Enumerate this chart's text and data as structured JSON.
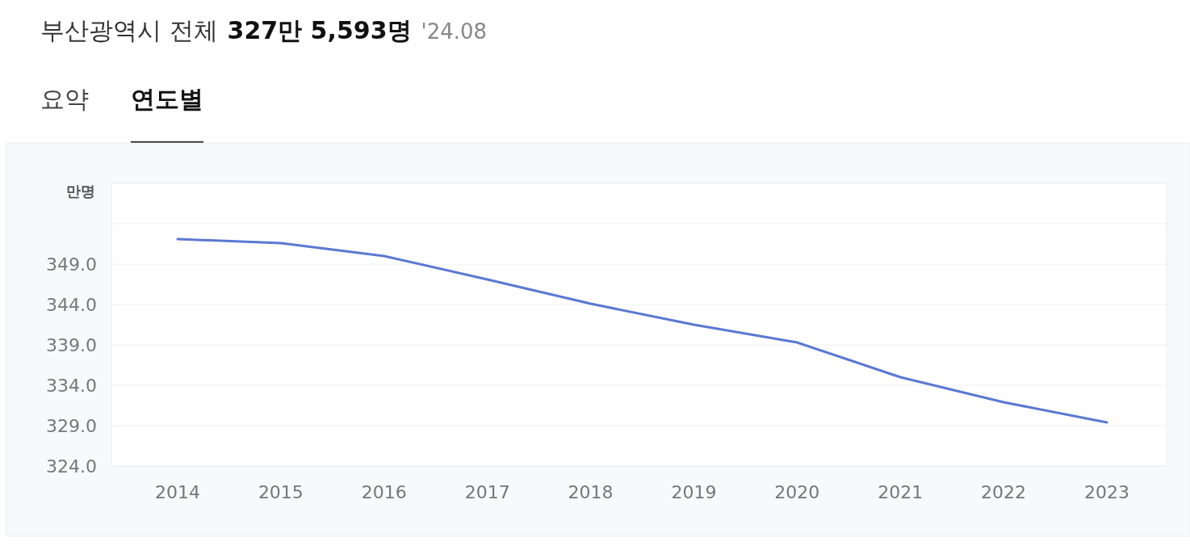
{
  "chart_data": {
    "type": "line",
    "title": "부산광역시 전체",
    "subtitle": "327만 5,593명",
    "annotations": [
      "'24.08",
      "요약",
      "연도별"
    ],
    "ylabel": "만명",
    "categories": [
      "2014",
      "2015",
      "2016",
      "2017",
      "2018",
      "2019",
      "2020",
      "2021",
      "2022",
      "2023"
    ],
    "series": [
      {
        "color": "#5b78d2",
        "values": [
          352.1,
          351.6,
          350.0,
          347.1,
          344.1,
          341.5,
          339.3,
          335.0,
          331.9,
          329.4
        ]
      }
    ],
    "ylim": [
      324,
      359
    ],
    "yticks": [
      {
        "value": 324,
        "label": "324.0"
      },
      {
        "value": 329,
        "label": "329.0"
      },
      {
        "value": 334,
        "label": "334.0"
      },
      {
        "value": 339,
        "label": "339.0"
      },
      {
        "value": 344,
        "label": "344.0"
      },
      {
        "value": 349,
        "label": "349.0"
      },
      {
        "value": 354,
        "label": null
      },
      {
        "value": 359,
        "label": null
      }
    ],
    "grid": "y",
    "marker": "none",
    "line_style": "solid"
  }
}
